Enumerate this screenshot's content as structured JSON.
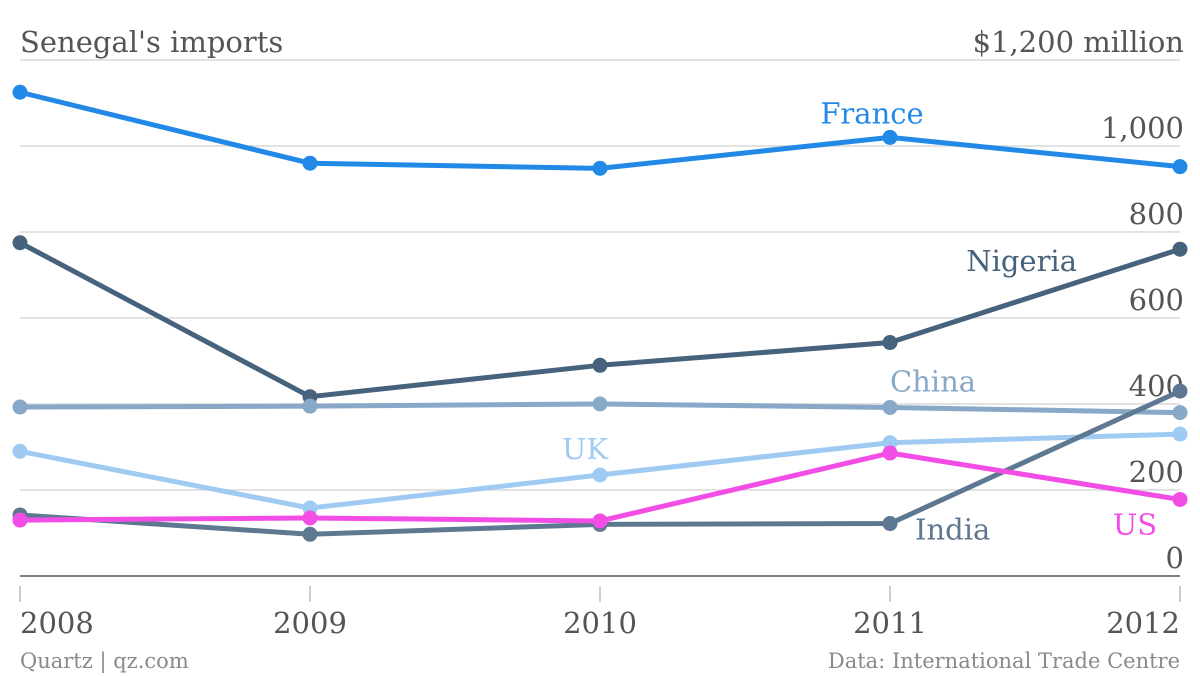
{
  "chart_data": {
    "type": "line",
    "title": "Senegal's imports",
    "unit_label": "$1,200 million",
    "categories": [
      "2008",
      "2009",
      "2010",
      "2011",
      "2012"
    ],
    "ylim": [
      0,
      1200
    ],
    "yticks": [
      0,
      200,
      400,
      600,
      800,
      1000
    ],
    "ytick_labels": [
      "0",
      "200",
      "400",
      "600",
      "800",
      "1,000"
    ],
    "grid": true,
    "series": [
      {
        "name": "France",
        "color": "#2389e6",
        "values": [
          1125,
          960,
          948,
          1020,
          952
        ]
      },
      {
        "name": "Nigeria",
        "color": "#46627c",
        "values": [
          775,
          417,
          490,
          543,
          760
        ]
      },
      {
        "name": "China",
        "color": "#88a8c8",
        "values": [
          393,
          395,
          400,
          392,
          380
        ]
      },
      {
        "name": "UK",
        "color": "#9fcaf2",
        "values": [
          290,
          158,
          235,
          310,
          330
        ]
      },
      {
        "name": "India",
        "color": "#5f7891",
        "values": [
          142,
          97,
          120,
          122,
          430
        ]
      },
      {
        "name": "US",
        "color": "#f24ee6",
        "values": [
          130,
          135,
          128,
          286,
          178
        ]
      }
    ]
  },
  "footer": {
    "source_left": "Quartz | qz.com",
    "source_right": "Data: International Trade Centre"
  }
}
